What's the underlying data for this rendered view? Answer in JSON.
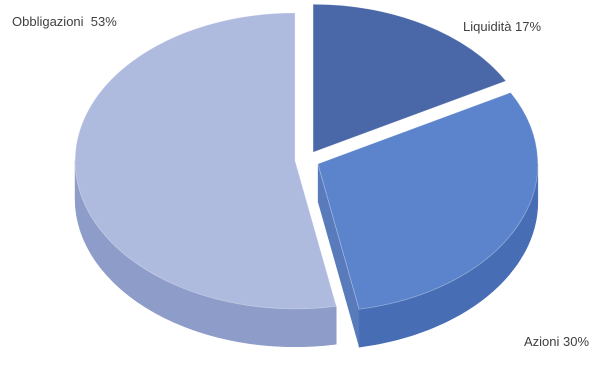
{
  "chart_data": {
    "type": "pie",
    "variant": "3d-exploded",
    "title": "",
    "slices": [
      {
        "name": "Liquidità",
        "value": 17,
        "label": "Liquidità 17%",
        "color": "#4a67a8",
        "side_color": "#3c5592"
      },
      {
        "name": "Azioni",
        "value": 30,
        "label": "Azioni 30%",
        "color": "#5b84cc",
        "side_color": "#476db5"
      },
      {
        "name": "Obbligazioni",
        "value": 53,
        "label": "Obbligazioni  53%",
        "color": "#aebbdf",
        "side_color": "#8d9cc8"
      }
    ],
    "start_angle_deg": 0,
    "direction": "clockwise",
    "legend": "none"
  }
}
